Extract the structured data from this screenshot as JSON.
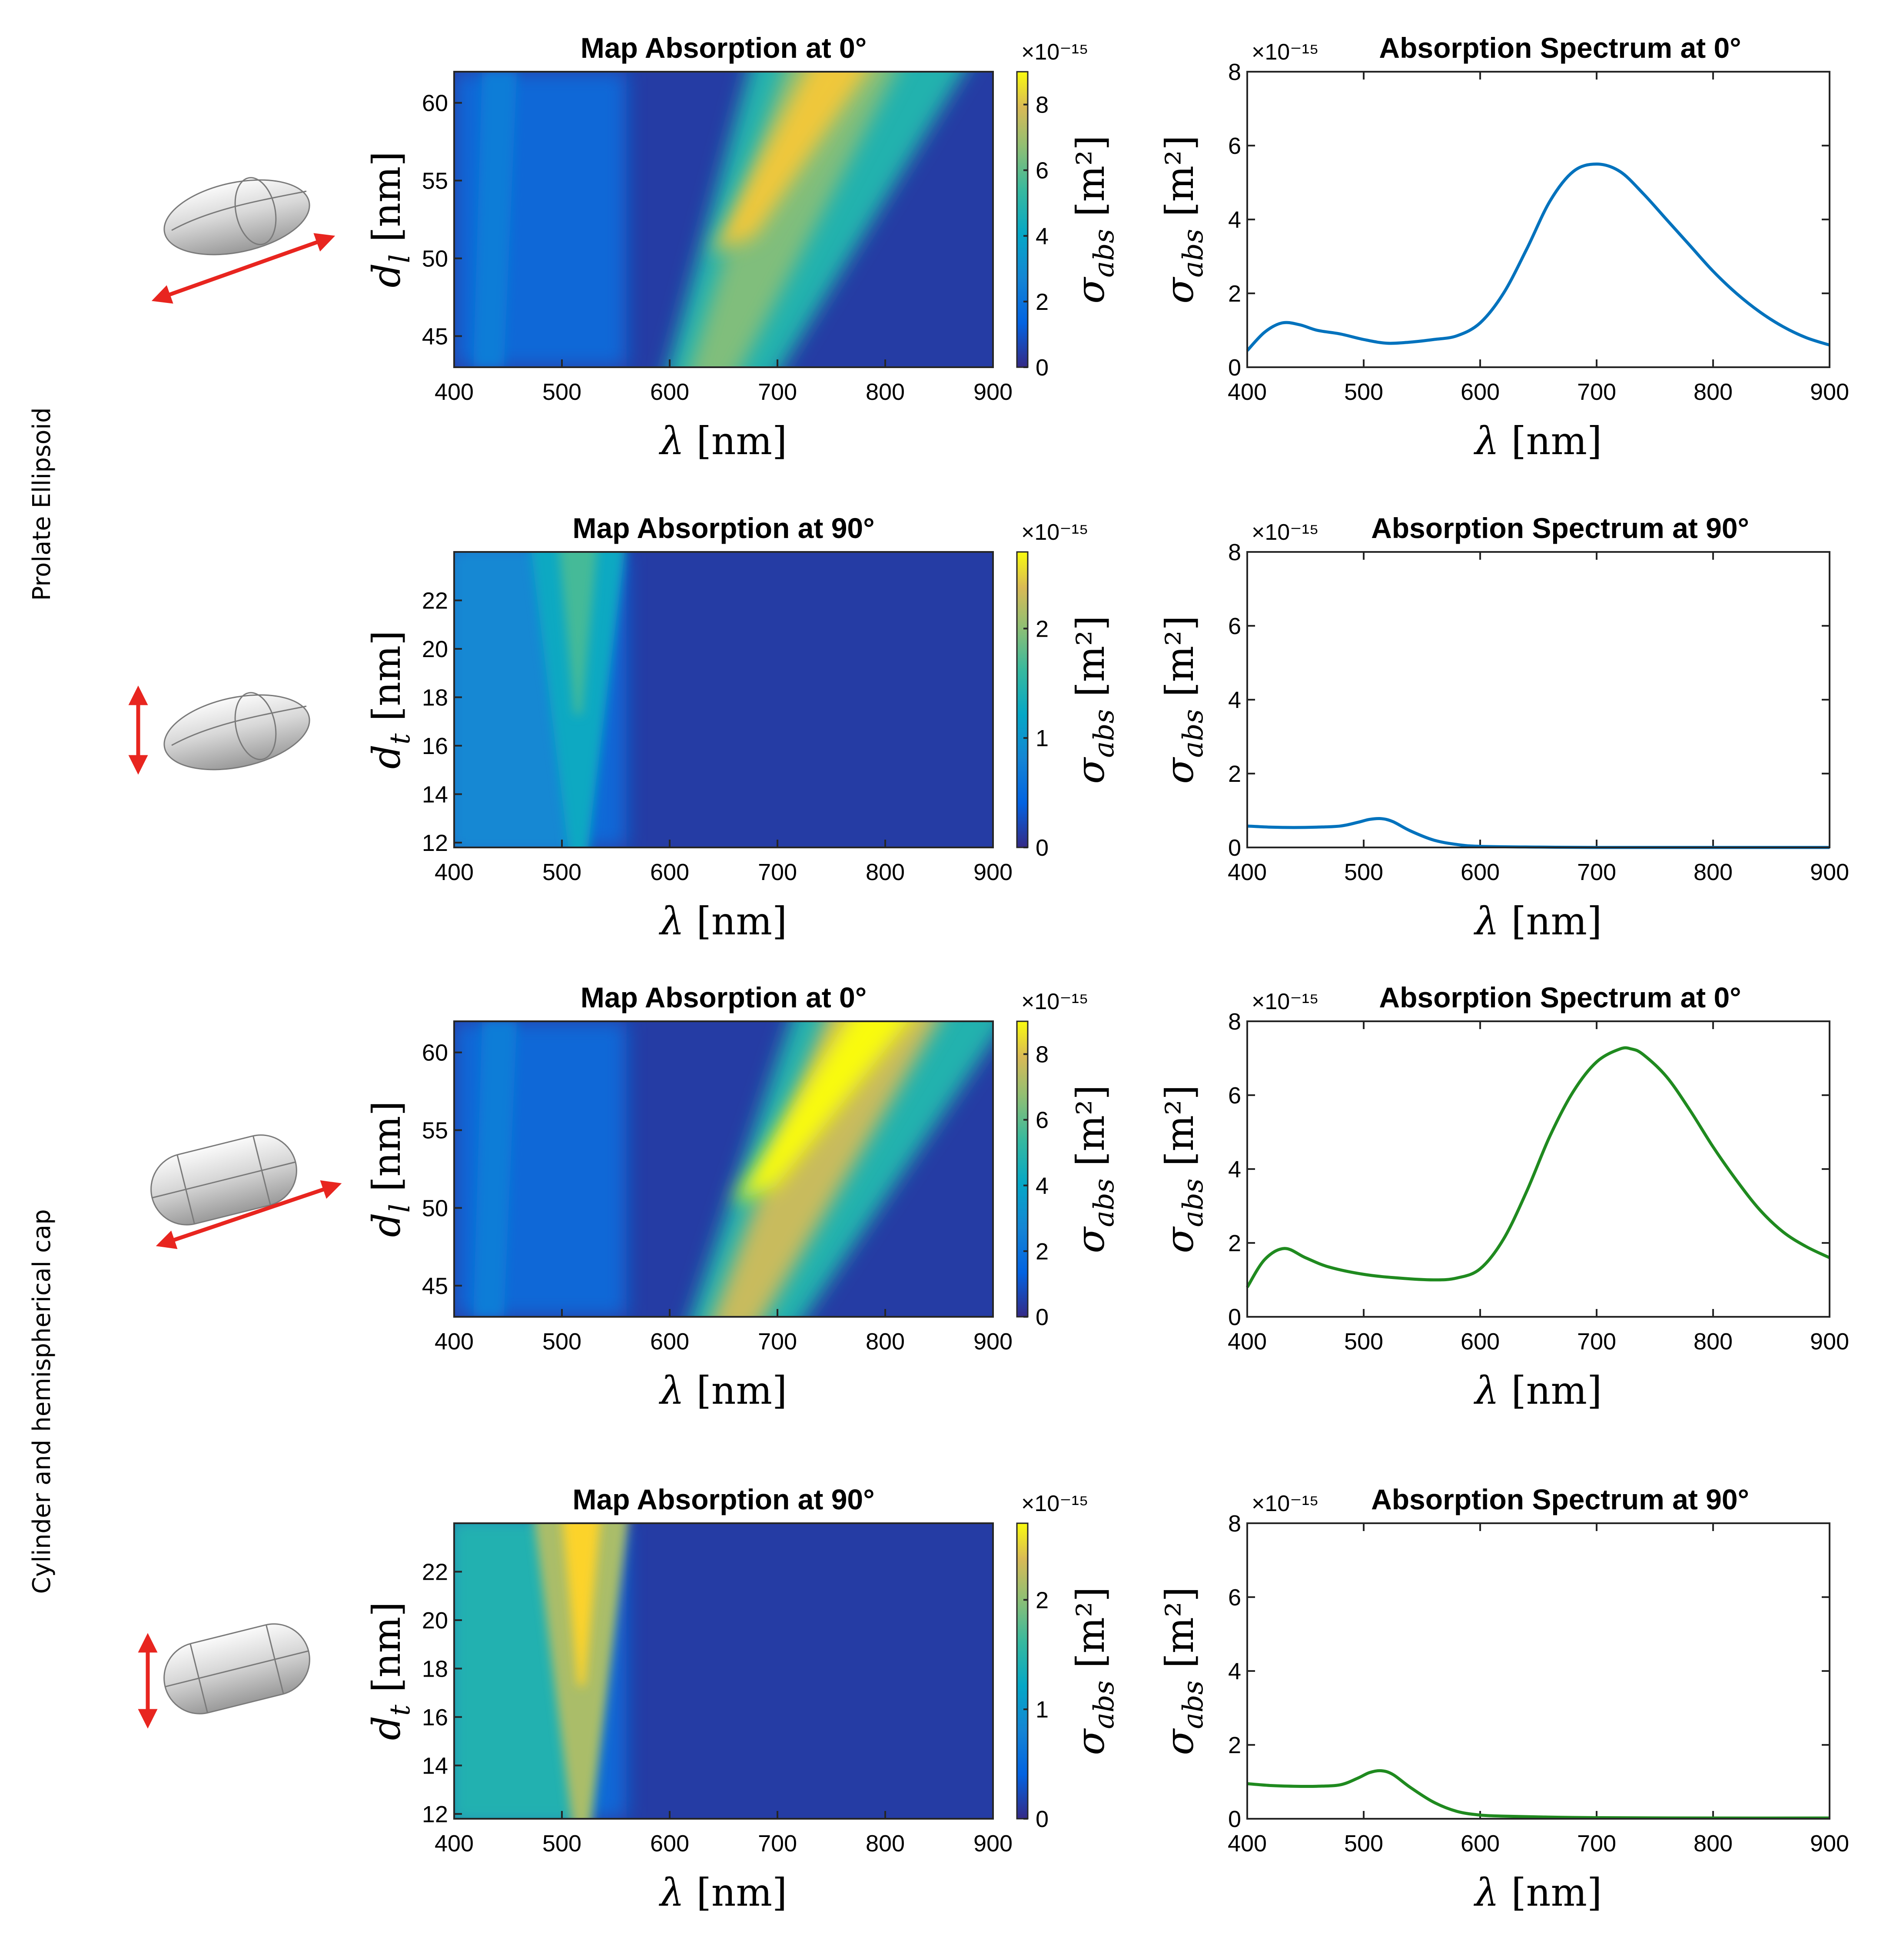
{
  "row_labels": [
    "Prolate Ellipsoid",
    "Cylinder and hemispherical cap"
  ],
  "colors": {
    "ellipsoid_line": "#0072BD",
    "cylinder_line": "#1F8A1F",
    "arrow": "#E8251F",
    "parula_low": "#352A87",
    "parula_mid": "#21A7C8",
    "parula_high": "#F9FB0E"
  },
  "chart_data": [
    {
      "type": "heatmap",
      "shape": "prolate-ellipsoid",
      "polarization_icon": "horizontal-arrow-icon",
      "title": "Map Absorption at 0°",
      "xlabel": "λ [nm]",
      "ylabel": "d_l [nm]",
      "xlim": [
        400,
        900
      ],
      "ylim": [
        43,
        62
      ],
      "xticks": [
        "400",
        "500",
        "600",
        "700",
        "800",
        "900"
      ],
      "yticks": [
        "45",
        "50",
        "55",
        "60"
      ],
      "colorbar": {
        "label": "σabs [m²]",
        "multiplier": "×10⁻¹⁵",
        "range": [
          0,
          9
        ],
        "ticks": [
          "0",
          "2",
          "4",
          "6",
          "8"
        ]
      },
      "peak_ridge": {
        "y_at": [
          43,
          62
        ],
        "lambda_at": [
          630,
          750
        ],
        "peak_value": 7.5
      },
      "secondary_ridge_lambda": 430
    },
    {
      "type": "line",
      "shape": "prolate-ellipsoid",
      "title": "Absorption Spectrum at 0°",
      "xlabel": "λ [nm]",
      "ylabel": "σabs [m²]",
      "multiplier": "×10⁻¹⁵",
      "xlim": [
        400,
        900
      ],
      "ylim": [
        0,
        8
      ],
      "xticks": [
        "400",
        "500",
        "600",
        "700",
        "800",
        "900"
      ],
      "yticks": [
        "0",
        "2",
        "4",
        "6",
        "8"
      ],
      "series": [
        {
          "name": "Prolate Ellipsoid 0°",
          "x": [
            400,
            415,
            430,
            445,
            460,
            480,
            500,
            520,
            540,
            560,
            580,
            600,
            620,
            640,
            660,
            680,
            700,
            720,
            740,
            760,
            780,
            800,
            820,
            840,
            860,
            880,
            900
          ],
          "y": [
            0.45,
            0.95,
            1.2,
            1.15,
            1.0,
            0.9,
            0.75,
            0.65,
            0.68,
            0.75,
            0.85,
            1.2,
            2.0,
            3.2,
            4.5,
            5.3,
            5.5,
            5.3,
            4.7,
            4.0,
            3.3,
            2.6,
            2.0,
            1.5,
            1.1,
            0.8,
            0.6
          ]
        }
      ]
    },
    {
      "type": "heatmap",
      "shape": "prolate-ellipsoid",
      "polarization_icon": "vertical-arrow-icon",
      "title": "Map Absorption at 90°",
      "xlabel": "λ [nm]",
      "ylabel": "d_t [nm]",
      "xlim": [
        400,
        900
      ],
      "ylim": [
        11.8,
        24
      ],
      "xticks": [
        "400",
        "500",
        "600",
        "700",
        "800",
        "900"
      ],
      "yticks": [
        "12",
        "14",
        "16",
        "18",
        "20",
        "22"
      ],
      "colorbar": {
        "label": "σabs [m²]",
        "multiplier": "×10⁻¹⁵",
        "range": [
          0,
          2.7
        ],
        "ticks": [
          "0",
          "1",
          "2"
        ]
      },
      "peak_ridge": {
        "lambda": 515,
        "peak_value": 1.4
      }
    },
    {
      "type": "line",
      "shape": "prolate-ellipsoid",
      "title": "Absorption Spectrum at 90°",
      "xlabel": "λ [nm]",
      "ylabel": "σabs [m²]",
      "multiplier": "×10⁻¹⁵",
      "xlim": [
        400,
        900
      ],
      "ylim": [
        0,
        8
      ],
      "xticks": [
        "400",
        "500",
        "600",
        "700",
        "800",
        "900"
      ],
      "yticks": [
        "0",
        "2",
        "4",
        "6",
        "8"
      ],
      "series": [
        {
          "name": "Prolate Ellipsoid 90°",
          "x": [
            400,
            420,
            440,
            460,
            480,
            495,
            505,
            515,
            525,
            540,
            560,
            580,
            600,
            650,
            700,
            800,
            900
          ],
          "y": [
            0.58,
            0.55,
            0.54,
            0.55,
            0.58,
            0.68,
            0.76,
            0.78,
            0.7,
            0.45,
            0.2,
            0.08,
            0.03,
            0.01,
            0.0,
            0.0,
            0.0
          ]
        }
      ]
    },
    {
      "type": "heatmap",
      "shape": "cylinder-hemispherical-cap",
      "polarization_icon": "horizontal-arrow-icon",
      "title": "Map Absorption at 0°",
      "xlabel": "λ [nm]",
      "ylabel": "d_l [nm]",
      "xlim": [
        400,
        900
      ],
      "ylim": [
        43,
        62
      ],
      "xticks": [
        "400",
        "500",
        "600",
        "700",
        "800",
        "900"
      ],
      "yticks": [
        "45",
        "50",
        "55",
        "60"
      ],
      "colorbar": {
        "label": "σabs [m²]",
        "multiplier": "×10⁻¹⁵",
        "range": [
          0,
          9
        ],
        "ticks": [
          "0",
          "2",
          "4",
          "6",
          "8"
        ]
      },
      "peak_ridge": {
        "y_at": [
          43,
          62
        ],
        "lambda_at": [
          650,
          790
        ],
        "peak_value": 9.0
      },
      "secondary_ridge_lambda": 430
    },
    {
      "type": "line",
      "shape": "cylinder-hemispherical-cap",
      "title": "Absorption Spectrum at 0°",
      "xlabel": "λ [nm]",
      "ylabel": "σabs [m²]",
      "multiplier": "×10⁻¹⁵",
      "xlim": [
        400,
        900
      ],
      "ylim": [
        0,
        8
      ],
      "xticks": [
        "400",
        "500",
        "600",
        "700",
        "800",
        "900"
      ],
      "yticks": [
        "0",
        "2",
        "4",
        "6",
        "8"
      ],
      "series": [
        {
          "name": "Cylinder and hemispherical cap 0°",
          "x": [
            400,
            415,
            432,
            450,
            470,
            500,
            530,
            560,
            580,
            600,
            620,
            640,
            660,
            680,
            700,
            720,
            730,
            740,
            760,
            780,
            800,
            820,
            840,
            860,
            880,
            900
          ],
          "y": [
            0.8,
            1.55,
            1.85,
            1.6,
            1.35,
            1.15,
            1.05,
            1.0,
            1.05,
            1.3,
            2.1,
            3.4,
            4.9,
            6.1,
            6.9,
            7.25,
            7.25,
            7.1,
            6.5,
            5.6,
            4.6,
            3.7,
            2.9,
            2.3,
            1.9,
            1.6
          ]
        }
      ]
    },
    {
      "type": "heatmap",
      "shape": "cylinder-hemispherical-cap",
      "polarization_icon": "vertical-arrow-icon",
      "title": "Map Absorption at 90°",
      "xlabel": "λ [nm]",
      "ylabel": "d_t [nm]",
      "xlim": [
        400,
        900
      ],
      "ylim": [
        11.8,
        24
      ],
      "xticks": [
        "400",
        "500",
        "600",
        "700",
        "800",
        "900"
      ],
      "yticks": [
        "12",
        "14",
        "16",
        "18",
        "20",
        "22"
      ],
      "colorbar": {
        "label": "σabs [m²]",
        "multiplier": "×10⁻¹⁵",
        "range": [
          0,
          2.7
        ],
        "ticks": [
          "0",
          "1",
          "2"
        ]
      },
      "peak_ridge": {
        "lambda": 518,
        "peak_value": 2.4
      }
    },
    {
      "type": "line",
      "shape": "cylinder-hemispherical-cap",
      "title": "Absorption Spectrum at 90°",
      "xlabel": "λ [nm]",
      "ylabel": "σabs [m²]",
      "multiplier": "×10⁻¹⁵",
      "xlim": [
        400,
        900
      ],
      "ylim": [
        0,
        8
      ],
      "xticks": [
        "400",
        "500",
        "600",
        "700",
        "800",
        "900"
      ],
      "yticks": [
        "0",
        "2",
        "4",
        "6",
        "8"
      ],
      "series": [
        {
          "name": "Cylinder and hemispherical cap 90°",
          "x": [
            400,
            420,
            440,
            460,
            480,
            495,
            505,
            515,
            525,
            540,
            560,
            580,
            600,
            620,
            650,
            700,
            800,
            900
          ],
          "y": [
            0.95,
            0.9,
            0.88,
            0.88,
            0.92,
            1.1,
            1.25,
            1.3,
            1.2,
            0.85,
            0.45,
            0.2,
            0.1,
            0.07,
            0.05,
            0.03,
            0.02,
            0.02
          ]
        }
      ]
    }
  ]
}
